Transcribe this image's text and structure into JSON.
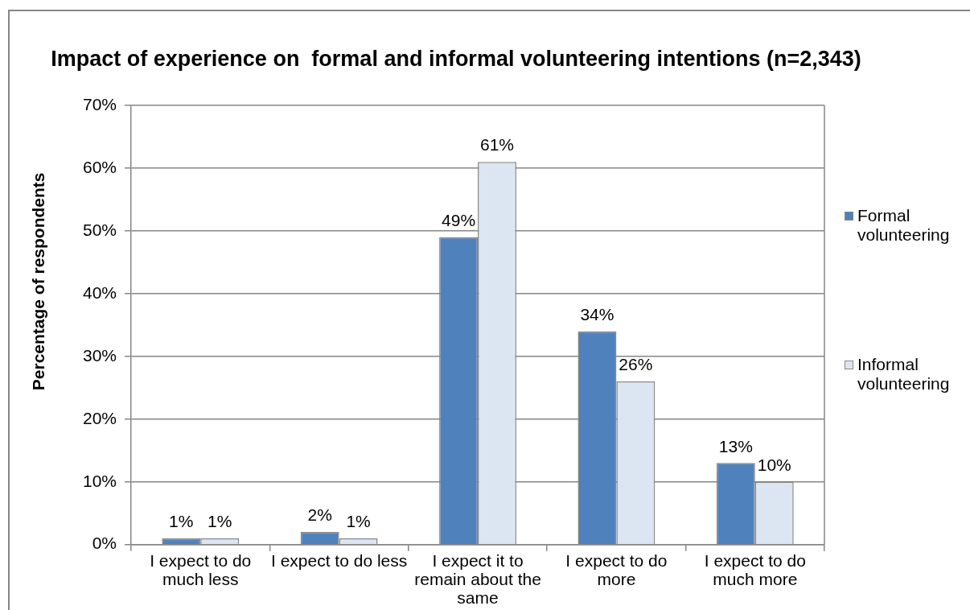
{
  "chart_data": {
    "type": "bar",
    "title": "Impact of experience on  formal and informal volunteering intentions (n=2,343)",
    "ylabel": "Percentage of respondents",
    "categories": [
      "I expect to do much less",
      "I expect to do less",
      "I expect it to remain about the same",
      "I expect to do more",
      "I expect to do much more"
    ],
    "series": [
      {
        "name": "Formal volunteering",
        "color": "#4f81bd",
        "values": [
          1,
          2,
          49,
          34,
          13
        ],
        "value_labels": [
          "1%",
          "2%",
          "49%",
          "34%",
          "13%"
        ]
      },
      {
        "name": "Informal volunteering",
        "color": "#dce6f2",
        "values": [
          1,
          1,
          61,
          26,
          10
        ],
        "value_labels": [
          "1%",
          "1%",
          "61%",
          "26%",
          "10%"
        ]
      }
    ],
    "ylim": [
      0,
      70
    ],
    "yticks": [
      {
        "value": 0,
        "label": "0%"
      },
      {
        "value": 10,
        "label": "10%"
      },
      {
        "value": 20,
        "label": "20%"
      },
      {
        "value": 30,
        "label": "30%"
      },
      {
        "value": 40,
        "label": "40%"
      },
      {
        "value": 50,
        "label": "50%"
      },
      {
        "value": 60,
        "label": "60%"
      },
      {
        "value": 70,
        "label": "70%"
      }
    ],
    "grid": "y",
    "legend": "right"
  }
}
